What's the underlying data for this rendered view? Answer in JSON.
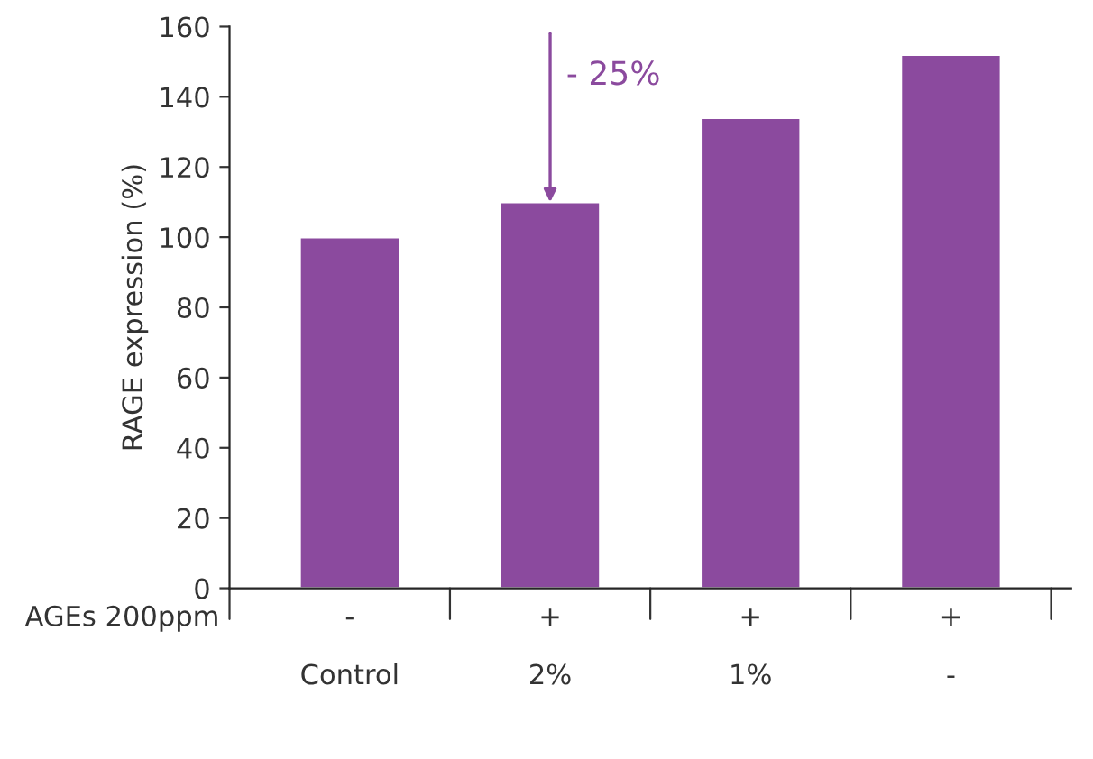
{
  "chart_data": {
    "type": "bar",
    "ylabel": "RAGE expression (%)",
    "categories": [
      "Control",
      "2%",
      "1%",
      "-"
    ],
    "values": [
      100,
      110,
      134,
      152
    ],
    "color": "#8b4a9e",
    "ylim": [
      0,
      160
    ],
    "yticks": [
      0,
      20,
      40,
      60,
      80,
      100,
      120,
      140,
      160
    ],
    "grid": false,
    "annotations": [
      {
        "text": "- 25%",
        "x": "2%",
        "y": 110
      },
      "AGEs 200ppm",
      "-",
      "+",
      "+",
      "+"
    ]
  }
}
